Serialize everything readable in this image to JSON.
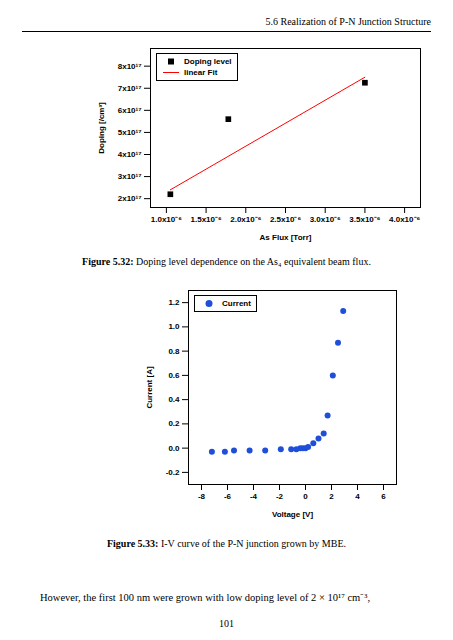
{
  "header": "5.6 Realization of P-N Junction Structure",
  "chart_data": [
    {
      "type": "scatter",
      "x_label": "As Flux [Torr]",
      "y_label": "Doping [/cm³]",
      "xlim": [
        8e-07,
        4.2e-06
      ],
      "xticks": [
        {
          "value": 1e-06,
          "label": "1.0x10⁻⁶"
        },
        {
          "value": 1.5e-06,
          "label": "1.5x10⁻⁶"
        },
        {
          "value": 2e-06,
          "label": "2.0x10⁻⁶"
        },
        {
          "value": 2.5e-06,
          "label": "2.5x10⁻⁶"
        },
        {
          "value": 3e-06,
          "label": "3.0x10⁻⁶"
        },
        {
          "value": 3.5e-06,
          "label": "3.5x10⁻⁶"
        },
        {
          "value": 4e-06,
          "label": "4.0x10⁻⁶"
        }
      ],
      "ylim": [
        1.6e+17,
        8.8e+17
      ],
      "yticks": [
        {
          "value": 2e+17,
          "label": "2x10¹⁷"
        },
        {
          "value": 3e+17,
          "label": "3x10¹⁷"
        },
        {
          "value": 4e+17,
          "label": "4x10¹⁷"
        },
        {
          "value": 5e+17,
          "label": "5x10¹⁷"
        },
        {
          "value": 6e+17,
          "label": "6x10¹⁷"
        },
        {
          "value": 7e+17,
          "label": "7x10¹⁷"
        },
        {
          "value": 8e+17,
          "label": "8x10¹⁷"
        }
      ],
      "grid": false,
      "legend": "top-left",
      "series": [
        {
          "name": "Doping level",
          "type": "scatter",
          "marker": "square",
          "color": "#000000",
          "x": [
            1.05e-06,
            1.78e-06,
            3.5e-06
          ],
          "values": [
            2.2e+17,
            5.6e+17,
            7.25e+17
          ]
        },
        {
          "name": "linear Fit",
          "type": "line",
          "line_style": "solid",
          "color": "#ff0000",
          "x": [
            1.05e-06,
            3.5e-06
          ],
          "values": [
            2.4e+17,
            7.5e+17
          ]
        }
      ]
    },
    {
      "type": "scatter",
      "x_label": "Voltage [V]",
      "y_label": "Current [A]",
      "xlim": [
        -9,
        7
      ],
      "xticks": [
        -8,
        -6,
        -4,
        -2,
        0,
        2,
        4,
        6
      ],
      "ylim": [
        -0.3,
        1.3
      ],
      "yticks": [
        {
          "value": -0.2,
          "label": "-0.2"
        },
        {
          "value": 0,
          "label": "0.0"
        },
        {
          "value": 0.2,
          "label": "0.2"
        },
        {
          "value": 0.4,
          "label": "0.4"
        },
        {
          "value": 0.6,
          "label": "0.6"
        },
        {
          "value": 0.8,
          "label": "0.8"
        },
        {
          "value": 1.0,
          "label": "1.0"
        },
        {
          "value": 1.2,
          "label": "1.2"
        }
      ],
      "grid": false,
      "legend": "top-left",
      "series": [
        {
          "name": "Current",
          "type": "scatter",
          "marker": "circle",
          "color": "#1f4fd8",
          "x": [
            -7.2,
            -6.2,
            -5.5,
            -4.3,
            -3.1,
            -1.9,
            -1.1,
            -0.7,
            -0.4,
            -0.2,
            0,
            0.2,
            0.6,
            1.0,
            1.4,
            1.7,
            2.1,
            2.5,
            2.9
          ],
          "values": [
            -0.03,
            -0.03,
            -0.02,
            -0.02,
            -0.02,
            -0.01,
            -0.01,
            -0.01,
            0,
            0,
            0,
            0.01,
            0.04,
            0.08,
            0.12,
            0.27,
            0.6,
            0.87,
            1.13
          ]
        }
      ]
    }
  ],
  "captions": [
    {
      "label": "Figure 5.32:",
      "text": "Doping level dependence on the As₄ equivalent beam flux."
    },
    {
      "label": "Figure 5.33:",
      "text": "I-V curve of the P-N junction grown by MBE."
    }
  ],
  "body": "However, the first 100 nm were grown with low doping level of 2 × 10¹⁷ cm⁻³,",
  "page_number": "101"
}
